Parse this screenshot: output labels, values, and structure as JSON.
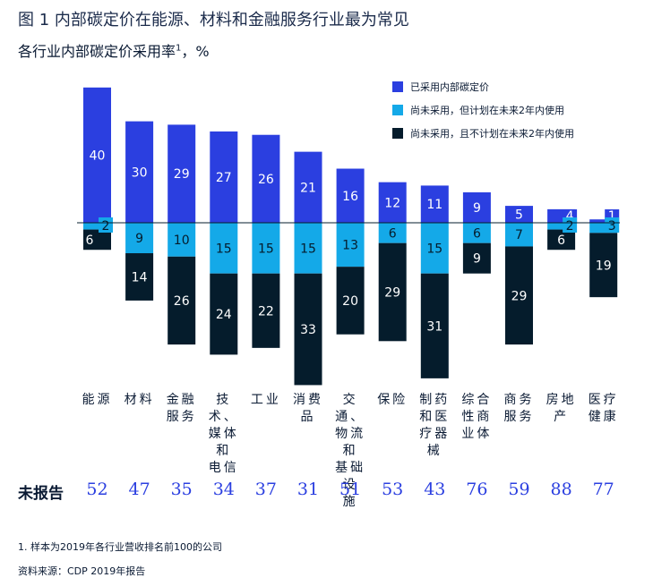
{
  "title": "图 1 内部碳定价在能源、材料和金融服务行业最为常见",
  "subtitle": "各行业内部碳定价采用率",
  "subtitle_sup": "1",
  "subtitle_unit": "，%",
  "legend": [
    {
      "label": "已采用内部碳定价",
      "color": "#2b3fe0"
    },
    {
      "label": "尚未采用，但计划在未来2年内使用",
      "color": "#14a9e8"
    },
    {
      "label": "尚未采用，且不计划在未来2年内使用",
      "color": "#051c2c"
    }
  ],
  "unreported_label": "未报告",
  "footnote": "1.  样本为2019年各行业营收排名前100的公司",
  "source": "资料来源：CDP 2019年报告",
  "chart_data": {
    "type": "bar",
    "categories": [
      [
        "能源"
      ],
      [
        "材料"
      ],
      [
        "金融",
        "服务"
      ],
      [
        "技术、",
        "媒体和",
        "电信"
      ],
      [
        "工业"
      ],
      [
        "消费",
        "品"
      ],
      [
        "交通、",
        "物流和",
        "基础设",
        "施"
      ],
      [
        "保险"
      ],
      [
        "制药",
        "和医",
        "疗器",
        "械"
      ],
      [
        "综合",
        "性商",
        "业体"
      ],
      [
        "商务",
        "服务"
      ],
      [
        "房地",
        "产"
      ],
      [
        "医疗",
        "健康"
      ]
    ],
    "series": [
      {
        "name": "已采用内部碳定价",
        "values": [
          40,
          30,
          29,
          27,
          26,
          21,
          16,
          12,
          11,
          9,
          5,
          4,
          1
        ]
      },
      {
        "name": "尚未采用，但计划在未来2年内使用",
        "values": [
          2,
          9,
          10,
          15,
          15,
          15,
          13,
          6,
          15,
          6,
          7,
          2,
          3
        ]
      },
      {
        "name": "尚未采用，且不计划在未来2年内使用",
        "values": [
          6,
          14,
          26,
          24,
          22,
          33,
          20,
          29,
          31,
          9,
          29,
          6,
          19
        ]
      }
    ],
    "unreported": [
      52,
      47,
      35,
      34,
      37,
      31,
      51,
      53,
      43,
      76,
      59,
      88,
      77
    ]
  }
}
